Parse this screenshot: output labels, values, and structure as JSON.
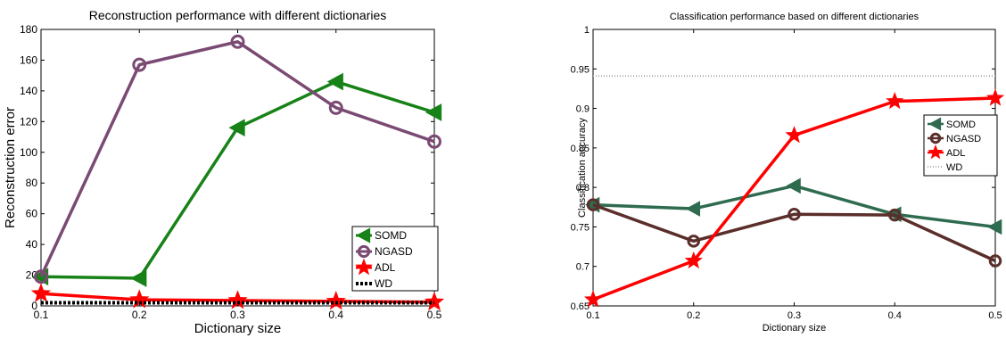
{
  "chart_data": [
    {
      "type": "line",
      "title": "Reconstruction performance with different dictionaries",
      "xlabel": "Dictionary size",
      "ylabel": "Reconstruction error",
      "x": [
        0.1,
        0.2,
        0.3,
        0.4,
        0.5
      ],
      "xticks": [
        "0.1",
        "0.2",
        "0.3",
        "0.4",
        "0.5"
      ],
      "yticks": [
        "0",
        "20",
        "40",
        "60",
        "80",
        "100",
        "120",
        "140",
        "160",
        "180"
      ],
      "xlim": [
        0.1,
        0.5
      ],
      "ylim": [
        0,
        180
      ],
      "grid": false,
      "legend_position": "bottom-right",
      "series": [
        {
          "name": "SOMD",
          "values": [
            19,
            18,
            116,
            146,
            126
          ],
          "color": "#178217",
          "marker": "triangle-left"
        },
        {
          "name": "NGASD",
          "values": [
            19,
            157,
            172,
            129,
            107
          ],
          "color": "#7a4a73",
          "marker": "circle"
        },
        {
          "name": "ADL",
          "values": [
            8,
            4,
            3.5,
            3,
            2.5
          ],
          "color": "#ff0000",
          "marker": "star"
        },
        {
          "name": "WD",
          "values": [
            2,
            2,
            2,
            2,
            2
          ],
          "color": "#000000",
          "marker": "none",
          "style": "dotted"
        }
      ]
    },
    {
      "type": "line",
      "title": "Classification performance based on different dictionaries",
      "xlabel": "Dictionary size",
      "ylabel": "Classification accuracy",
      "x": [
        0.1,
        0.2,
        0.3,
        0.4,
        0.5
      ],
      "xticks": [
        "0.1",
        "0.2",
        "0.3",
        "0.4",
        "0.5"
      ],
      "yticks": [
        "0.65",
        "0.7",
        "0.75",
        "0.8",
        "0.85",
        "0.9",
        "0.95",
        "1"
      ],
      "xlim": [
        0.1,
        0.5
      ],
      "ylim": [
        0.65,
        1
      ],
      "grid": false,
      "legend_position": "center-right",
      "series": [
        {
          "name": "SOMD",
          "values": [
            0.778,
            0.773,
            0.802,
            0.766,
            0.75
          ],
          "color": "#2e6b4f",
          "marker": "triangle-left"
        },
        {
          "name": "NGASD",
          "values": [
            0.778,
            0.732,
            0.766,
            0.765,
            0.707
          ],
          "color": "#5a2e2a",
          "marker": "circle"
        },
        {
          "name": "ADL",
          "values": [
            0.658,
            0.707,
            0.866,
            0.909,
            0.913
          ],
          "color": "#ff0000",
          "marker": "star"
        },
        {
          "name": "WD",
          "values": [
            0.941,
            0.941,
            0.941,
            0.941,
            0.941
          ],
          "color": "#aaaaaa",
          "marker": "none",
          "style": "dotted"
        }
      ]
    }
  ]
}
